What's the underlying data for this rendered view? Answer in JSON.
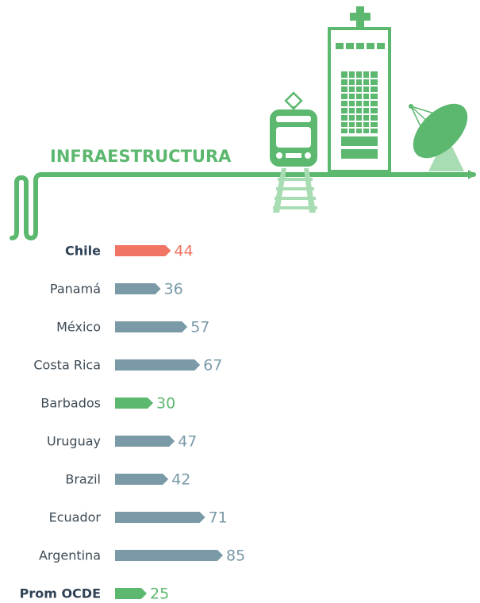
{
  "chart_data": {
    "type": "bar",
    "orientation": "horizontal",
    "title": "INFRAESTRUCTURA",
    "categories": [
      "Chile",
      "Panamá",
      "México",
      "Costa Rica",
      "Barbados",
      "Uruguay",
      "Brazil",
      "Ecuador",
      "Argentina",
      "Prom OCDE"
    ],
    "values": [
      44,
      36,
      57,
      67,
      30,
      47,
      42,
      71,
      85,
      25
    ],
    "colors": [
      "#f07565",
      "#7a9aa8",
      "#7a9aa8",
      "#7a9aa8",
      "#5cb86f",
      "#7a9aa8",
      "#7a9aa8",
      "#7a9aa8",
      "#7a9aa8",
      "#5cb86f"
    ]
  }
}
